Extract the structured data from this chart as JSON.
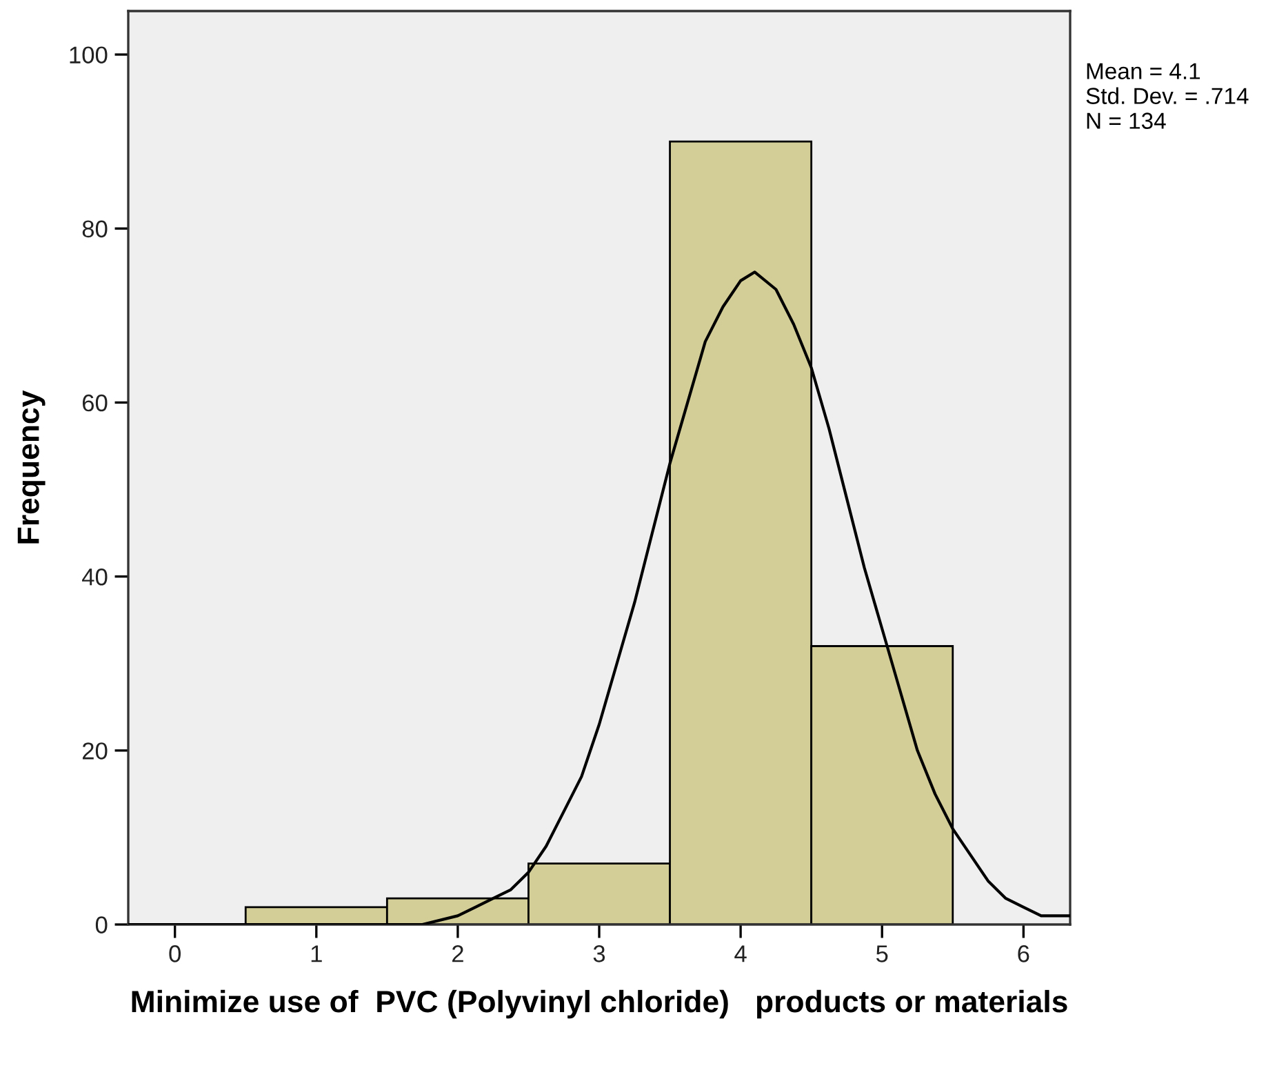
{
  "chart_data": {
    "type": "histogram",
    "xlabel": "Minimize use of  PVC (Polyvinyl chloride)   products or materials",
    "ylabel": "Frequency",
    "bins": [
      0.5,
      1.5,
      2.5,
      3.5,
      4.5,
      5.5
    ],
    "values": [
      2,
      3,
      7,
      90,
      32
    ],
    "color": "#d3ce97",
    "series": [
      {
        "type": "line",
        "color": "#000000",
        "x": [
          -0.33,
          0.5,
          1,
          1.5,
          1.75,
          2,
          2.125,
          2.25,
          2.375,
          2.5,
          2.625,
          2.75,
          2.875,
          3,
          3.125,
          3.25,
          3.375,
          3.5,
          3.625,
          3.75,
          3.875,
          4,
          4.1,
          4.25,
          4.375,
          4.5,
          4.625,
          4.75,
          4.875,
          5,
          5.125,
          5.25,
          5.375,
          5.5,
          5.625,
          5.75,
          5.875,
          6,
          6.125,
          6.33
        ],
        "values": [
          0,
          0,
          0,
          0,
          0,
          1,
          2,
          3,
          4,
          6,
          9,
          13,
          17,
          23,
          30,
          37,
          45,
          53,
          60,
          67,
          71,
          74,
          75,
          73,
          69,
          64,
          57,
          49,
          41,
          34,
          27,
          20,
          15,
          11,
          8,
          5,
          3,
          2,
          1,
          1
        ]
      }
    ],
    "xlim": [
      -0.33,
      6.33
    ],
    "ylim": [
      0,
      105
    ],
    "xticks": [
      0,
      1,
      2,
      3,
      4,
      5,
      6
    ],
    "yticks": [
      0,
      20,
      40,
      60,
      80,
      100
    ],
    "annotations": [
      "Mean = 4.1",
      "Std. Dev. = .714",
      "N = 134"
    ],
    "grid": false
  }
}
